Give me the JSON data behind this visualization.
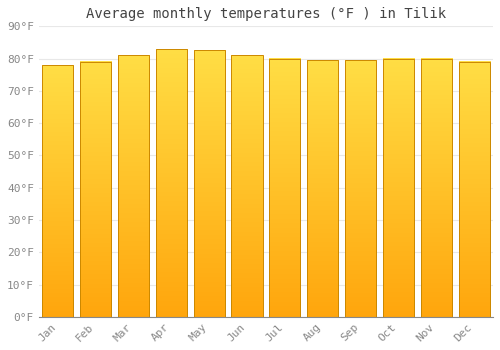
{
  "title": "Average monthly temperatures (°F ) in Tilik",
  "months": [
    "Jan",
    "Feb",
    "Mar",
    "Apr",
    "May",
    "Jun",
    "Jul",
    "Aug",
    "Sep",
    "Oct",
    "Nov",
    "Dec"
  ],
  "values": [
    78,
    79,
    81,
    83,
    82.5,
    81,
    80,
    79.5,
    79.5,
    80,
    80,
    79
  ],
  "bar_color_top": "#FFB300",
  "bar_color_bottom": "#FFCC44",
  "bar_color_edge": "#CC8800",
  "ylim": [
    0,
    90
  ],
  "yticks": [
    0,
    10,
    20,
    30,
    40,
    50,
    60,
    70,
    80,
    90
  ],
  "ytick_labels": [
    "0°F",
    "10°F",
    "20°F",
    "30°F",
    "40°F",
    "50°F",
    "60°F",
    "70°F",
    "80°F",
    "90°F"
  ],
  "background_color": "#FFFFFF",
  "grid_color": "#E8E8E8",
  "title_fontsize": 10,
  "tick_fontsize": 8,
  "font_family": "monospace",
  "bar_width": 0.82
}
